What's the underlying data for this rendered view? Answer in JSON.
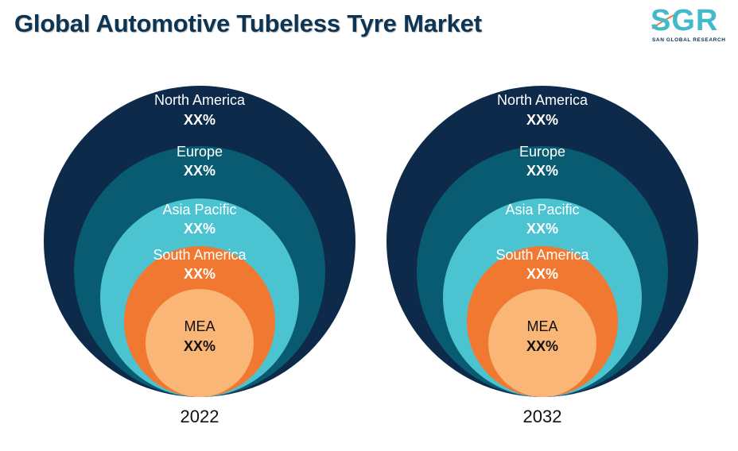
{
  "title": "Global Automotive Tubeless Tyre Market",
  "logo": {
    "text": "SGR",
    "subtitle": "SAN GLOBAL RESEARCH"
  },
  "colors": {
    "title": "#0d3553",
    "logo_accent": "#43b9cc",
    "logo_dark": "#13324c"
  },
  "chart_data": [
    {
      "type": "nested-circle",
      "year": "2022",
      "segments": [
        {
          "label": "North America",
          "value": "XX%",
          "color": "#0d2a4b",
          "text_color": "#ffffff"
        },
        {
          "label": "Europe",
          "value": "XX%",
          "color": "#085b70",
          "text_color": "#ffffff"
        },
        {
          "label": "Asia Pacific",
          "value": "XX%",
          "color": "#4cc3d1",
          "text_color": "#ffffff"
        },
        {
          "label": "South America",
          "value": "XX%",
          "color": "#f07830",
          "text_color": "#ffffff"
        },
        {
          "label": "MEA",
          "value": "XX%",
          "color": "#f9b676",
          "text_color": "#111111"
        }
      ]
    },
    {
      "type": "nested-circle",
      "year": "2032",
      "segments": [
        {
          "label": "North America",
          "value": "XX%",
          "color": "#0d2a4b",
          "text_color": "#ffffff"
        },
        {
          "label": "Europe",
          "value": "XX%",
          "color": "#085b70",
          "text_color": "#ffffff"
        },
        {
          "label": "Asia Pacific",
          "value": "XX%",
          "color": "#4cc3d1",
          "text_color": "#ffffff"
        },
        {
          "label": "South America",
          "value": "XX%",
          "color": "#f07830",
          "text_color": "#ffffff"
        },
        {
          "label": "MEA",
          "value": "XX%",
          "color": "#f9b676",
          "text_color": "#111111"
        }
      ]
    }
  ]
}
